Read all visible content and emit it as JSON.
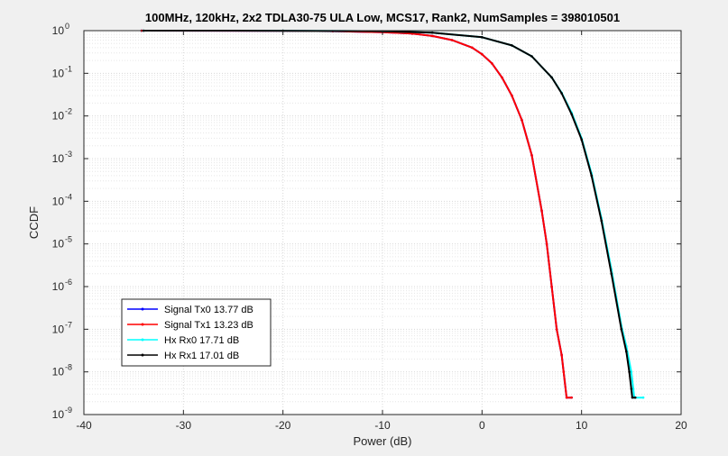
{
  "chart_data": {
    "type": "line",
    "title": "100MHz, 120kHz, 2x2 TDLA30-75 ULA Low, MCS17, Rank2, NumSamples = 398010501",
    "xlabel": "Power (dB)",
    "ylabel": "CCDF",
    "xlim": [
      -40,
      20
    ],
    "ylim": [
      1e-09,
      1
    ],
    "yscale": "log",
    "grid": true,
    "minor_grid": true,
    "legend_position": "bottom-left",
    "x_ticks": [
      -40,
      -30,
      -20,
      -10,
      0,
      10,
      20
    ],
    "x_tick_labels": [
      "-40",
      "-30",
      "-20",
      "-10",
      "0",
      "10",
      "20"
    ],
    "y_tick_exponents": [
      -9,
      -8,
      -7,
      -6,
      -5,
      -4,
      -3,
      -2,
      -1,
      0
    ],
    "y_tick_labels": [
      "10",
      "10",
      "10",
      "10",
      "10",
      "10",
      "10",
      "10",
      "10",
      "10"
    ],
    "y_tick_exponent_labels": [
      "-9",
      "-8",
      "-7",
      "-6",
      "-5",
      "-4",
      "-3",
      "-2",
      "-1",
      "0"
    ],
    "series": [
      {
        "name": "Signal Tx0 13.77 dB",
        "color": "#0000ff",
        "x": [
          -34.2,
          -20,
          -15,
          -10,
          -7,
          -5,
          -3,
          -1,
          0,
          1,
          2,
          3,
          4,
          5,
          6,
          6.5,
          7,
          7.5,
          8,
          8.2,
          8.5,
          9.0
        ],
        "y": [
          1,
          0.99,
          0.97,
          0.92,
          0.85,
          0.75,
          0.6,
          0.4,
          0.28,
          0.17,
          0.08,
          0.03,
          0.008,
          0.0012,
          6e-05,
          1e-05,
          1e-06,
          1e-07,
          2.5e-08,
          1e-08,
          2.5e-09,
          2.5e-09
        ]
      },
      {
        "name": "Signal Tx1 13.23 dB",
        "color": "#ff0000",
        "x": [
          -34.2,
          -20,
          -15,
          -10,
          -7,
          -5,
          -3,
          -1,
          0,
          1,
          2,
          3,
          4,
          5,
          6,
          6.5,
          7,
          7.5,
          8,
          8.2,
          8.5,
          9.0
        ],
        "y": [
          1,
          0.99,
          0.97,
          0.92,
          0.85,
          0.75,
          0.6,
          0.4,
          0.28,
          0.17,
          0.08,
          0.03,
          0.008,
          0.0012,
          6e-05,
          1e-05,
          1e-06,
          1e-07,
          2.5e-08,
          1e-08,
          2.5e-09,
          2.5e-09
        ]
      },
      {
        "name": "Hx Rx0 17.71 dB",
        "color": "#00ffff",
        "x": [
          -34,
          -20,
          -10,
          -5,
          0,
          3,
          5,
          7,
          8,
          9,
          10,
          11,
          12,
          13,
          14,
          14.5,
          15,
          15.2,
          15.3,
          16.2
        ],
        "y": [
          1,
          0.995,
          0.97,
          0.9,
          0.7,
          0.45,
          0.25,
          0.08,
          0.035,
          0.012,
          0.003,
          0.00045,
          4e-05,
          2.5e-06,
          1.2e-07,
          4e-08,
          1e-08,
          4e-09,
          2.5e-09,
          2.5e-09
        ]
      },
      {
        "name": "Hx Rx1 17.01 dB",
        "color": "#000000",
        "x": [
          -34,
          -20,
          -10,
          -5,
          0,
          3,
          5,
          7,
          8,
          9,
          10,
          11,
          12,
          13,
          14,
          14.5,
          14.8,
          15.0,
          15.1,
          15.4
        ],
        "y": [
          1,
          0.995,
          0.97,
          0.9,
          0.7,
          0.45,
          0.25,
          0.08,
          0.034,
          0.011,
          0.0028,
          0.0004,
          3.5e-05,
          2e-06,
          1e-07,
          3e-08,
          1e-08,
          4e-09,
          2.5e-09,
          2.5e-09
        ]
      }
    ]
  }
}
